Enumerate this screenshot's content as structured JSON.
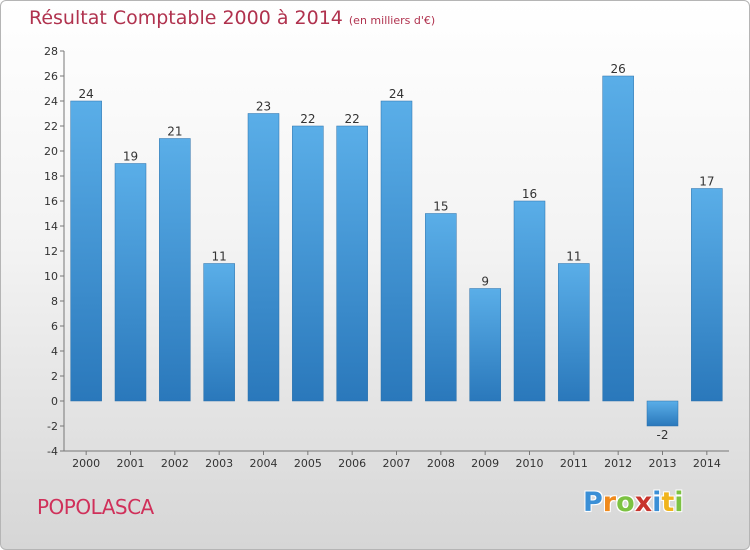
{
  "title": "Résultat Comptable 2000 à 2014",
  "unit": "(en milliers d'€)",
  "commune": "POPOLASCA",
  "logo": {
    "letters": [
      "P",
      "r",
      "o",
      "x",
      "i",
      "t",
      "i"
    ],
    "colors": [
      "#3a8fd6",
      "#f08a1c",
      "#7cc242",
      "#c8342d",
      "#3a8fd6",
      "#f0b41c",
      "#7cc242"
    ]
  },
  "chart_data": {
    "type": "bar",
    "categories": [
      "2000",
      "2001",
      "2002",
      "2003",
      "2004",
      "2005",
      "2006",
      "2007",
      "2008",
      "2009",
      "2010",
      "2011",
      "2012",
      "2013",
      "2014"
    ],
    "values": [
      24,
      19,
      21,
      11,
      23,
      22,
      22,
      24,
      15,
      9,
      16,
      11,
      26,
      -2,
      17
    ],
    "data_labels": [
      "24",
      "19",
      "21",
      "11",
      "23",
      "22",
      "22",
      "24",
      "15",
      "9",
      "16",
      "11",
      "26",
      "-2",
      "17"
    ],
    "ylim": [
      -4,
      28
    ],
    "yticks": [
      -4,
      -2,
      0,
      2,
      4,
      6,
      8,
      10,
      12,
      14,
      16,
      18,
      20,
      22,
      24,
      26,
      28
    ],
    "grid": false,
    "bar_color_top": "#5aaee8",
    "bar_color_bottom": "#2a78bb"
  }
}
